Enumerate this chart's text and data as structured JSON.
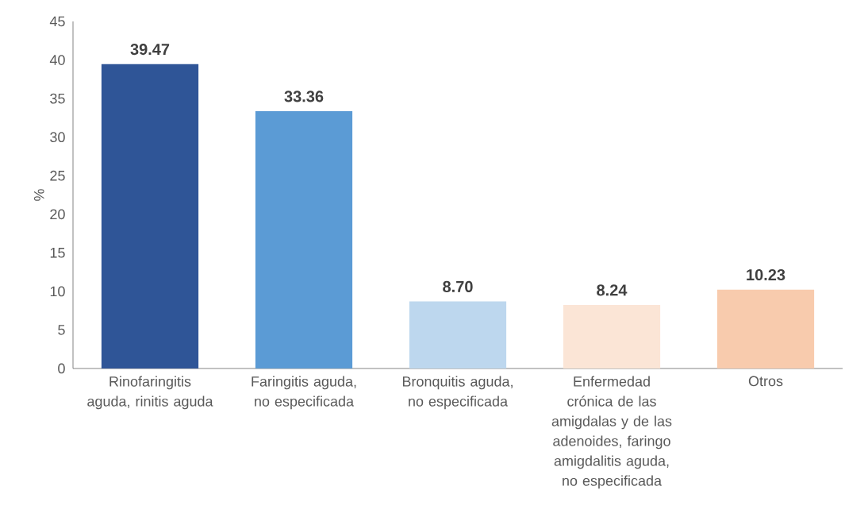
{
  "chart_data": {
    "type": "bar",
    "ylabel": "%",
    "categories": [
      "Rinofaringitis aguda, rinitis aguda",
      "Faringitis aguda, no especificada",
      "Bronquitis aguda, no especificada",
      "Enfermedad crónica de las amigdalas y de las adenoides, faringo amigdalitis aguda, no especificada",
      "Otros"
    ],
    "values": [
      39.47,
      33.36,
      8.7,
      8.24,
      10.23
    ],
    "value_labels": [
      "39.47",
      "33.36",
      "8.70",
      "8.24",
      "10.23"
    ],
    "colors": [
      "#2f5597",
      "#5b9bd5",
      "#bdd7ee",
      "#fbe5d6",
      "#f8cbad"
    ],
    "ylim": [
      0,
      45
    ],
    "yticks": [
      0,
      5,
      10,
      15,
      20,
      25,
      30,
      35,
      40,
      45
    ],
    "grid": false
  }
}
